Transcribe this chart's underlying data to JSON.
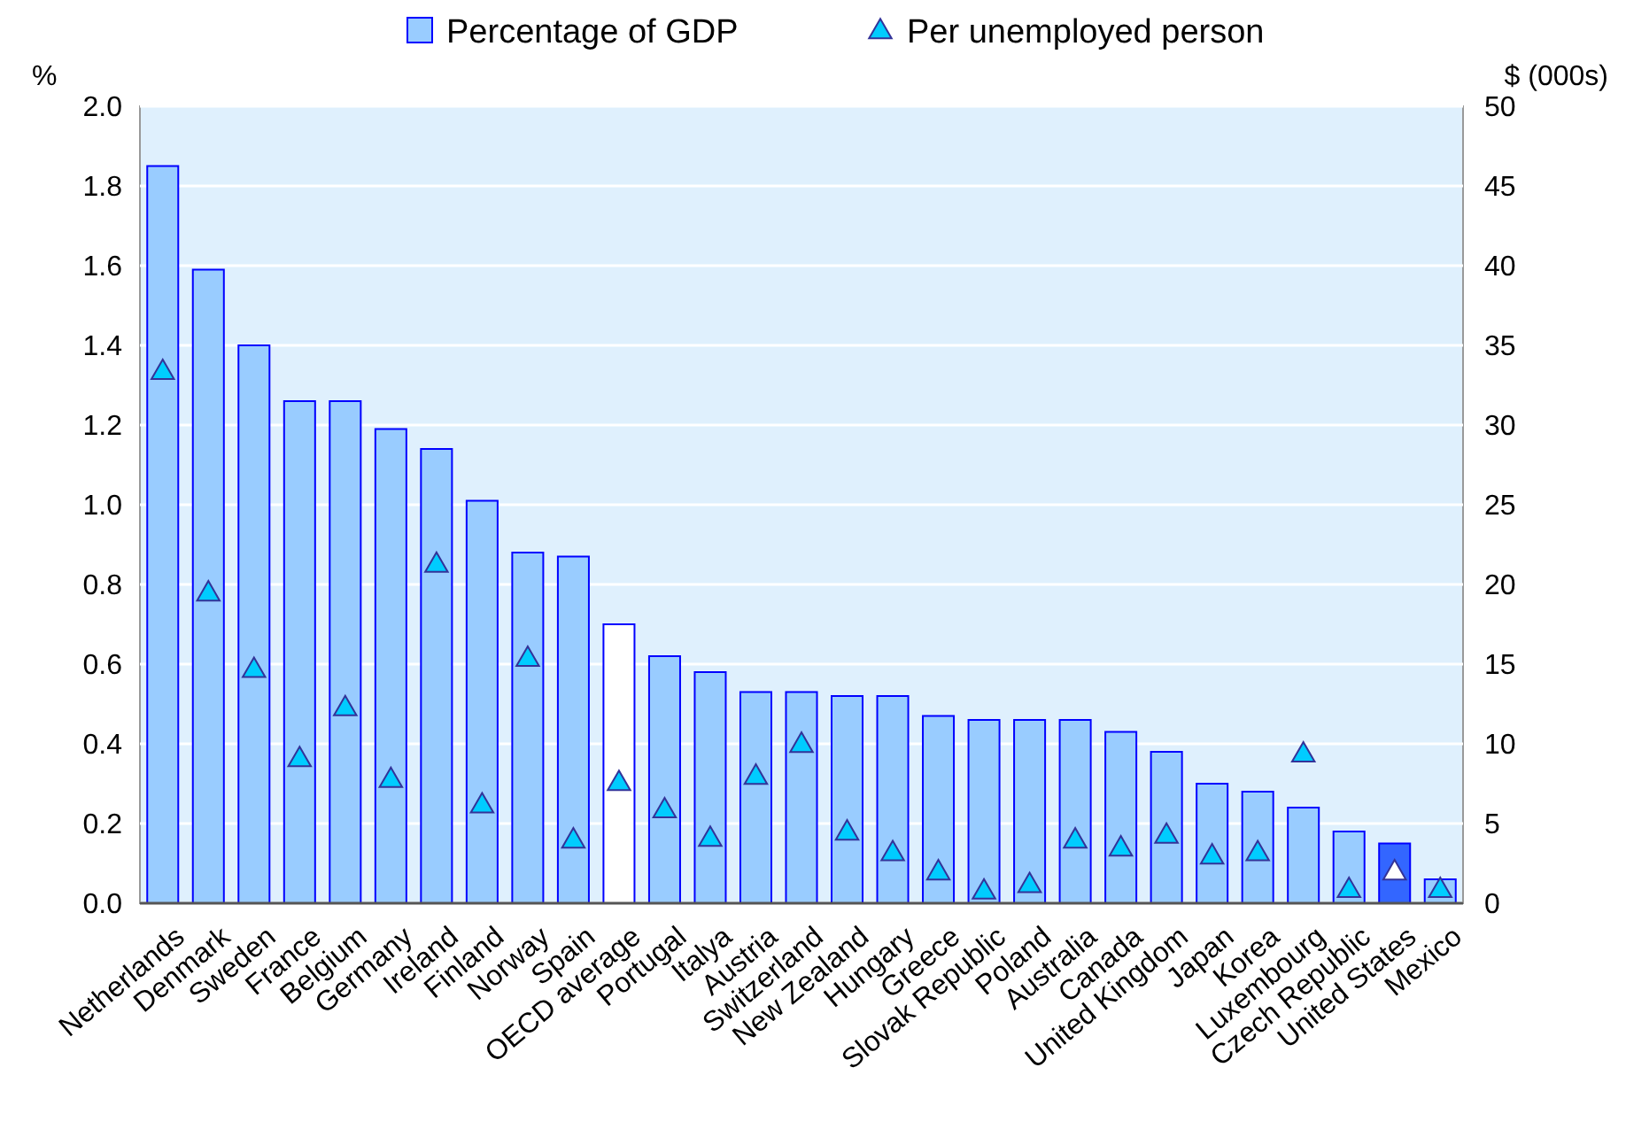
{
  "chart_data": {
    "type": "bar",
    "categories": [
      "Netherlands",
      "Denmark",
      "Sweden",
      "France",
      "Belgium",
      "Germany",
      "Ireland",
      "Finland",
      "Norway",
      "Spain",
      "OECD average",
      "Portugal",
      "Italya",
      "Austria",
      "Switzerland",
      "New Zealand",
      "Hungary",
      "Greece",
      "Slovak Republic",
      "Poland",
      "Australia",
      "Canada",
      "United Kingdom",
      "Japan",
      "Korea",
      "Luxembourg",
      "Czech Republic",
      "United States",
      "Mexico"
    ],
    "ylabel": "%",
    "y2label": "$ (000s)",
    "ylim": [
      0,
      2.0
    ],
    "yticks": [
      {
        "value": 0,
        "label": "0.0"
      },
      {
        "value": 0.2,
        "label": "0.2"
      },
      {
        "value": 0.4,
        "label": "0.4"
      },
      {
        "value": 0.6,
        "label": "0.6"
      },
      {
        "value": 0.8,
        "label": "0.8"
      },
      {
        "value": 1.0,
        "label": "1.0"
      },
      {
        "value": 1.2,
        "label": "1.2"
      },
      {
        "value": 1.4,
        "label": "1.4"
      },
      {
        "value": 1.6,
        "label": "1.6"
      },
      {
        "value": 1.8,
        "label": "1.8"
      },
      {
        "value": 2.0,
        "label": "2.0"
      }
    ],
    "y2lim": [
      0,
      50
    ],
    "y2ticks": [
      0,
      5,
      10,
      15,
      20,
      25,
      30,
      35,
      40,
      45,
      50
    ],
    "grid": "y",
    "legend": "top",
    "series": [
      {
        "name": "Percentage of GDP",
        "color": "#99ccff",
        "colors": [
          "#99ccff",
          "#99ccff",
          "#99ccff",
          "#99ccff",
          "#99ccff",
          "#99ccff",
          "#99ccff",
          "#99ccff",
          "#99ccff",
          "#99ccff",
          "#ffffff",
          "#99ccff",
          "#99ccff",
          "#99ccff",
          "#99ccff",
          "#99ccff",
          "#99ccff",
          "#99ccff",
          "#99ccff",
          "#99ccff",
          "#99ccff",
          "#99ccff",
          "#99ccff",
          "#99ccff",
          "#99ccff",
          "#99ccff",
          "#99ccff",
          "#3366ff",
          "#99ccff"
        ],
        "values": [
          1.85,
          1.59,
          1.4,
          1.26,
          1.26,
          1.19,
          1.14,
          1.01,
          0.88,
          0.87,
          0.7,
          0.62,
          0.58,
          0.53,
          0.53,
          0.52,
          0.52,
          0.47,
          0.46,
          0.46,
          0.46,
          0.43,
          0.38,
          0.3,
          0.28,
          0.24,
          0.18,
          0.15,
          0.06
        ]
      },
      {
        "name": "Per unemployed person",
        "type": "scatter",
        "axis": "y2",
        "marker": "triangle",
        "color": "#00ccff",
        "colors": [
          "#00ccff",
          "#00ccff",
          "#00ccff",
          "#00ccff",
          "#00ccff",
          "#00ccff",
          "#00ccff",
          "#00ccff",
          "#00ccff",
          "#00ccff",
          "#00ccff",
          "#00ccff",
          "#00ccff",
          "#00ccff",
          "#00ccff",
          "#00ccff",
          "#00ccff",
          "#00ccff",
          "#00ccff",
          "#00ccff",
          "#00ccff",
          "#00ccff",
          "#00ccff",
          "#00ccff",
          "#00ccff",
          "#00ccff",
          "#00ccff",
          "#ffffff",
          "#00ccff"
        ],
        "values": [
          33.3,
          19.4,
          14.6,
          9.0,
          12.2,
          7.7,
          21.2,
          6.1,
          15.3,
          3.9,
          7.5,
          5.8,
          4.0,
          7.9,
          9.9,
          4.4,
          3.1,
          1.9,
          0.7,
          1.1,
          3.9,
          3.4,
          4.2,
          2.9,
          3.1,
          9.3,
          0.8,
          1.9,
          0.8
        ]
      }
    ]
  }
}
